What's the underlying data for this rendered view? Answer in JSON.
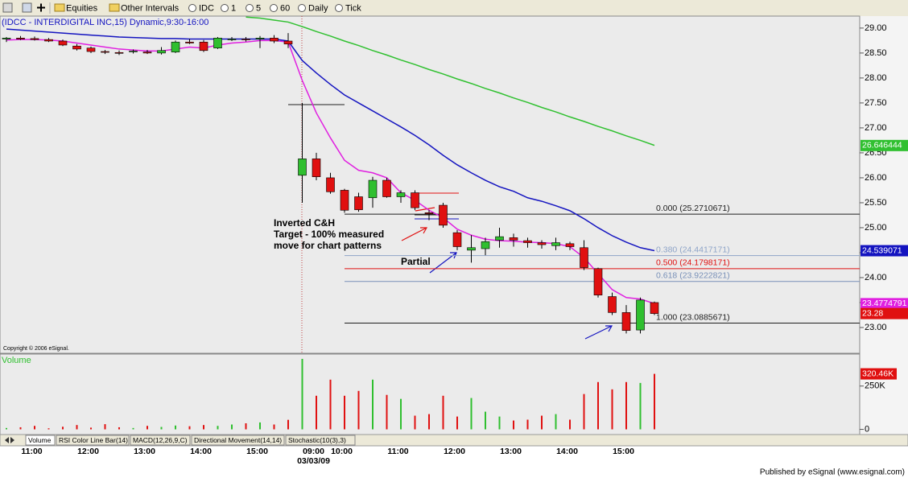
{
  "toolbar": {
    "items": [
      "Equities",
      "Other Intervals",
      "IDC",
      "1",
      "5",
      "60",
      "Daily",
      "Tick"
    ]
  },
  "chart_data": [
    {
      "type": "candlestick",
      "title": "(IDCC - INTERDIGITAL INC,15) Dynamic,9:30-16:00",
      "copyright": "Copyright © 2006 eSignal.",
      "date_label": "03/03/09",
      "categories": [
        null,
        "11:00",
        null,
        null,
        null,
        "12:00",
        null,
        null,
        null,
        "13:00",
        null,
        null,
        null,
        "14:00",
        null,
        null,
        null,
        "15:00",
        null,
        null,
        null,
        "09:00",
        null,
        "10:00",
        null,
        null,
        null,
        "11:00",
        null,
        null,
        null,
        "12:00",
        null,
        null,
        null,
        "13:00",
        null,
        null,
        null,
        "14:00",
        null,
        null,
        null,
        "15:00",
        null,
        null,
        null
      ],
      "open": [
        28.78,
        28.8,
        28.79,
        28.77,
        28.74,
        28.64,
        28.6,
        28.53,
        28.51,
        28.53,
        28.52,
        28.5,
        28.52,
        28.72,
        28.72,
        28.6,
        28.78,
        28.78,
        28.78,
        28.8,
        28.74,
        26.05,
        26.38,
        26.0,
        25.75,
        25.62,
        25.6,
        25.95,
        25.62,
        25.7,
        25.3,
        25.45,
        24.9,
        24.55,
        24.58,
        24.75,
        24.8,
        24.74,
        24.7,
        24.64,
        24.68,
        24.6,
        24.18,
        23.62,
        23.3,
        22.95,
        23.5
      ],
      "high": [
        28.82,
        28.84,
        28.83,
        28.8,
        28.77,
        28.68,
        28.63,
        28.56,
        28.55,
        28.57,
        28.56,
        28.62,
        28.75,
        28.78,
        28.76,
        28.82,
        28.82,
        28.82,
        28.84,
        28.86,
        28.9,
        27.5,
        26.5,
        26.1,
        25.78,
        25.7,
        26.02,
        26.0,
        25.75,
        25.75,
        25.35,
        25.5,
        24.95,
        24.85,
        24.8,
        25.0,
        24.88,
        24.8,
        24.75,
        24.8,
        24.72,
        24.75,
        24.2,
        23.7,
        23.45,
        23.6,
        23.52
      ],
      "low": [
        28.72,
        28.76,
        28.75,
        28.72,
        28.64,
        28.55,
        28.5,
        28.48,
        28.46,
        28.49,
        28.48,
        28.47,
        28.5,
        28.68,
        28.52,
        28.58,
        28.74,
        28.73,
        28.6,
        28.7,
        28.6,
        25.5,
        25.95,
        25.68,
        25.3,
        25.32,
        25.4,
        25.6,
        25.5,
        25.35,
        25.15,
        25.0,
        24.55,
        24.3,
        24.45,
        24.6,
        24.62,
        24.6,
        24.58,
        24.55,
        24.55,
        24.15,
        23.6,
        23.25,
        22.88,
        22.88,
        23.25
      ],
      "close": [
        28.8,
        28.78,
        28.77,
        28.74,
        28.66,
        28.58,
        28.53,
        28.52,
        28.5,
        28.54,
        28.5,
        28.55,
        28.72,
        28.7,
        28.55,
        28.8,
        28.78,
        28.77,
        28.8,
        28.74,
        28.68,
        26.38,
        26.02,
        25.72,
        25.35,
        25.36,
        25.95,
        25.62,
        25.7,
        25.4,
        25.28,
        25.05,
        24.62,
        24.6,
        24.72,
        24.82,
        24.75,
        24.7,
        24.66,
        24.7,
        24.62,
        24.2,
        23.65,
        23.3,
        22.94,
        23.55,
        23.28
      ],
      "up_color": "#2fbf2f",
      "down_color": "#e01010",
      "last_value": 23.28,
      "series": [
        {
          "color": "#e020e0",
          "last_value": 23.4774791,
          "values": [
            28.76,
            28.77,
            28.77,
            28.76,
            28.74,
            28.7,
            28.66,
            28.62,
            28.58,
            28.56,
            28.54,
            28.54,
            28.58,
            28.62,
            28.6,
            28.66,
            28.7,
            28.72,
            28.75,
            28.75,
            28.72,
            27.95,
            27.3,
            26.8,
            26.35,
            26.15,
            26.1,
            26.0,
            25.7,
            25.55,
            25.35,
            25.2,
            24.97,
            24.85,
            24.77,
            24.74,
            24.73,
            24.71,
            24.7,
            24.68,
            24.62,
            24.4,
            24.08,
            23.76,
            23.6,
            23.57,
            23.48
          ]
        },
        {
          "color": "#1414c0",
          "last_value": 24.539071,
          "values": [
            28.98,
            28.96,
            28.94,
            28.92,
            28.9,
            28.88,
            28.86,
            28.84,
            28.82,
            28.81,
            28.8,
            28.79,
            28.79,
            28.78,
            28.78,
            28.78,
            28.78,
            28.78,
            28.78,
            28.78,
            28.74,
            28.35,
            28.1,
            27.87,
            27.66,
            27.5,
            27.34,
            27.18,
            27.02,
            26.85,
            26.66,
            26.45,
            26.26,
            26.1,
            25.95,
            25.82,
            25.73,
            25.6,
            25.53,
            25.44,
            25.34,
            25.18,
            25.0,
            24.84,
            24.71,
            24.6,
            24.54
          ]
        },
        {
          "color": "#30c030",
          "last_value": 26.646444,
          "values": [
            null,
            null,
            null,
            null,
            null,
            null,
            null,
            null,
            null,
            null,
            null,
            null,
            null,
            null,
            null,
            null,
            null,
            29.22,
            29.2,
            29.16,
            29.12,
            29.03,
            28.93,
            28.84,
            28.74,
            28.65,
            28.55,
            28.46,
            28.36,
            28.27,
            28.17,
            28.08,
            27.98,
            27.89,
            27.79,
            27.7,
            27.6,
            27.51,
            27.41,
            27.32,
            27.22,
            27.13,
            27.03,
            26.94,
            26.84,
            26.75,
            26.65
          ]
        }
      ],
      "fib_levels": [
        {
          "label": "0.000 (25.2710671)",
          "value": 25.2710671,
          "color": "#202020"
        },
        {
          "label": "0.380 (24.4417171)",
          "value": 24.4417171,
          "color": "#8ea4c8"
        },
        {
          "label": "0.500 (24.1798171)",
          "value": 24.1798171,
          "color": "#e01010"
        },
        {
          "label": "0.618 (23.9222821)",
          "value": 23.9222821,
          "color": "#7890b8"
        },
        {
          "label": "1.000 (23.0885671)",
          "value": 23.0885671,
          "color": "#202020"
        }
      ],
      "annotations": [
        "Inverted C&H",
        "Target - 100% measured",
        "move for chart patterns",
        "Partial"
      ],
      "ylim": [
        22.5,
        29.24
      ],
      "yticks": [
        {
          "value": 29,
          "label": "29.00"
        },
        {
          "value": 28.5,
          "label": "28.50"
        },
        {
          "value": 28,
          "label": "28.00"
        },
        {
          "value": 27.5,
          "label": "27.50"
        },
        {
          "value": 27,
          "label": "27.00"
        },
        {
          "value": 26.5,
          "label": "26.50"
        },
        {
          "value": 26,
          "label": "26.00"
        },
        {
          "value": 25.5,
          "label": "25.50"
        },
        {
          "value": 25,
          "label": "25.00"
        },
        {
          "value": 24.5,
          "label": "24.50"
        },
        {
          "value": 24,
          "label": "24.00"
        },
        {
          "value": 23.5,
          "label": "23.50"
        },
        {
          "value": 23,
          "label": "23.00"
        }
      ]
    },
    {
      "type": "bar",
      "title": "Volume",
      "values": [
        8000,
        12000,
        20000,
        6000,
        15000,
        25000,
        10000,
        30000,
        12000,
        8000,
        20000,
        14000,
        22000,
        18000,
        25000,
        20000,
        28000,
        35000,
        40000,
        28000,
        55000,
        407000,
        194000,
        287000,
        194000,
        222000,
        287000,
        199000,
        176000,
        79000,
        88000,
        194000,
        74000,
        181000,
        102000,
        74000,
        51000,
        56000,
        79000,
        88000,
        56000,
        204000,
        273000,
        231000,
        273000,
        268000,
        320460
      ],
      "last_value": {
        "value": 320460,
        "label": "320.46K"
      },
      "ylim": [
        -30000,
        430000
      ],
      "yticks": [
        {
          "value": 250000,
          "label": "250K"
        },
        0
      ]
    }
  ],
  "tabs": [
    "Volume",
    "RSI Color Line Bar(14)",
    "MACD(12,26,9,C)",
    "Directional Movement(14,14)",
    "Stochastic(10(3),3)"
  ],
  "footer": "Published by eSignal (www.esignal.com)"
}
